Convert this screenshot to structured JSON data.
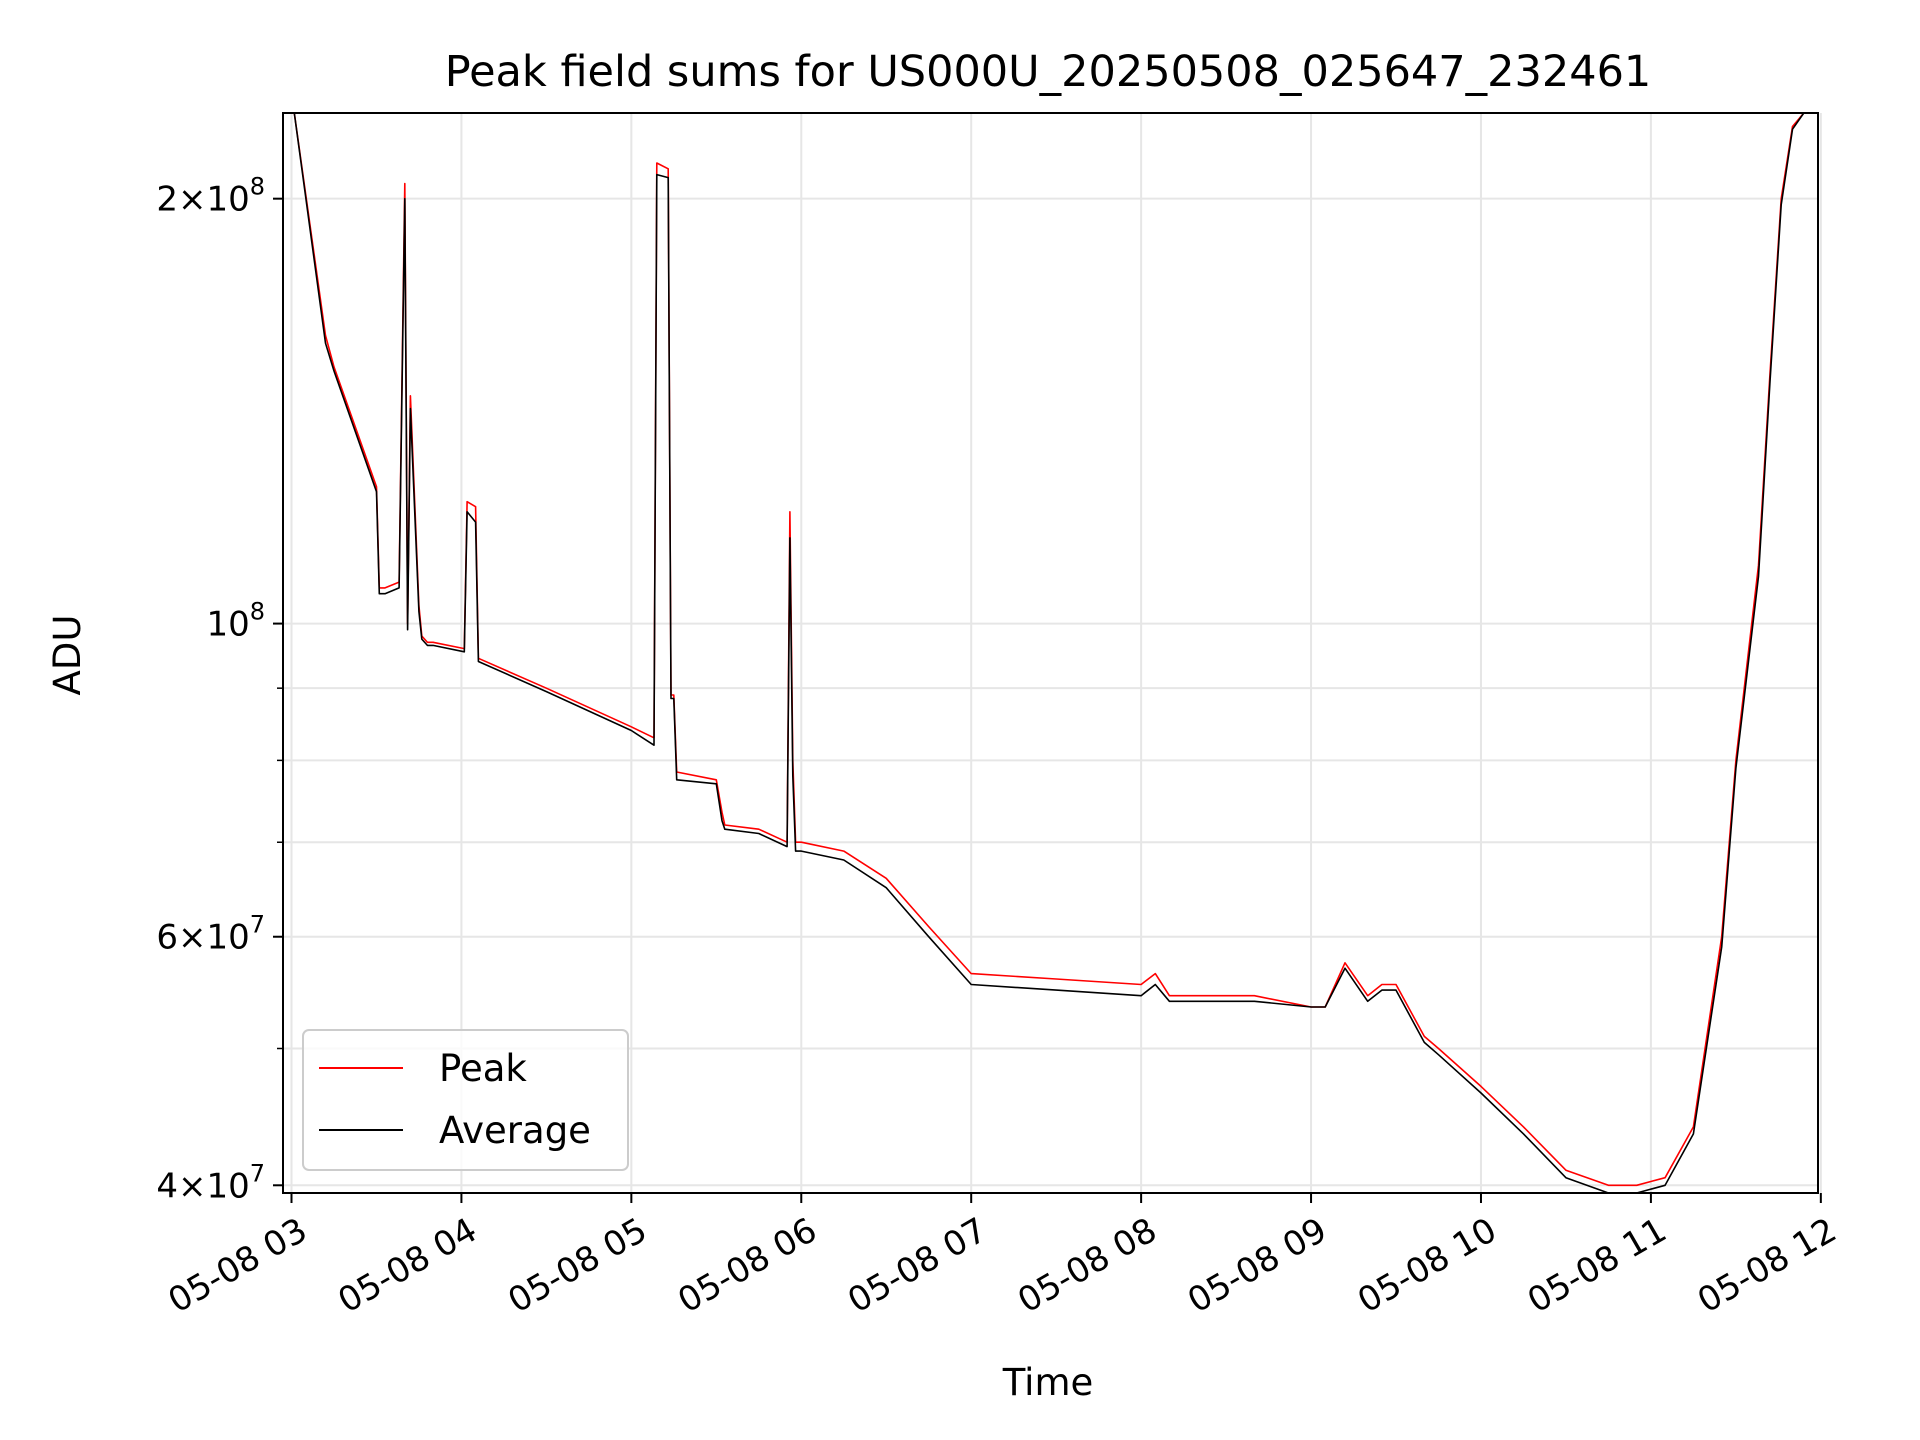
{
  "chart_data": {
    "type": "line",
    "title": "Peak field sums for US000U_20250508_025647_232461",
    "xlabel": "Time",
    "ylabel": "ADU",
    "y_scale": "log",
    "grid": true,
    "legend_position": "lower-left",
    "xlim": [
      "2025-05-08 02:57",
      "2025-05-08 11:59"
    ],
    "ylim": [
      39500000,
      230000000
    ],
    "x_ticks": [
      {
        "value": "2025-05-08 03:00",
        "label": "05-08 03"
      },
      {
        "value": "2025-05-08 04:00",
        "label": "05-08 04"
      },
      {
        "value": "2025-05-08 05:00",
        "label": "05-08 05"
      },
      {
        "value": "2025-05-08 06:00",
        "label": "05-08 06"
      },
      {
        "value": "2025-05-08 07:00",
        "label": "05-08 07"
      },
      {
        "value": "2025-05-08 08:00",
        "label": "05-08 08"
      },
      {
        "value": "2025-05-08 09:00",
        "label": "05-08 09"
      },
      {
        "value": "2025-05-08 10:00",
        "label": "05-08 10"
      },
      {
        "value": "2025-05-08 11:00",
        "label": "05-08 11"
      },
      {
        "value": "2025-05-08 12:00",
        "label": "05-08 12"
      }
    ],
    "y_major_ticks": [
      {
        "value": 40000000,
        "mantissa": "4",
        "exponent": "7"
      },
      {
        "value": 60000000,
        "mantissa": "6",
        "exponent": "7"
      },
      {
        "value": 100000000,
        "mantissa": "",
        "exponent": "8"
      },
      {
        "value": 200000000,
        "mantissa": "2",
        "exponent": "8"
      }
    ],
    "y_minor_ticks": [
      50000000,
      70000000,
      80000000,
      90000000
    ],
    "series": [
      {
        "name": "Peak",
        "color": "#ff0000",
        "x": [
          "2025-05-08 02:57",
          "2025-05-08 03:01",
          "2025-05-08 03:12",
          "2025-05-08 03:15",
          "2025-05-08 03:30",
          "2025-05-08 03:31",
          "2025-05-08 03:33",
          "2025-05-08 03:38",
          "2025-05-08 03:40",
          "2025-05-08 03:41",
          "2025-05-08 03:42",
          "2025-05-08 03:45",
          "2025-05-08 03:46",
          "2025-05-08 03:48",
          "2025-05-08 03:50",
          "2025-05-08 04:01",
          "2025-05-08 04:02",
          "2025-05-08 04:05",
          "2025-05-08 04:06",
          "2025-05-08 04:30",
          "2025-05-08 05:00",
          "2025-05-08 05:08",
          "2025-05-08 05:09",
          "2025-05-08 05:13",
          "2025-05-08 05:14",
          "2025-05-08 05:15",
          "2025-05-08 05:16",
          "2025-05-08 05:30",
          "2025-05-08 05:32",
          "2025-05-08 05:33",
          "2025-05-08 05:45",
          "2025-05-08 05:55",
          "2025-05-08 05:56",
          "2025-05-08 05:57",
          "2025-05-08 05:58",
          "2025-05-08 06:00",
          "2025-05-08 06:15",
          "2025-05-08 06:30",
          "2025-05-08 06:45",
          "2025-05-08 07:00",
          "2025-05-08 07:30",
          "2025-05-08 08:00",
          "2025-05-08 08:05",
          "2025-05-08 08:10",
          "2025-05-08 08:20",
          "2025-05-08 08:40",
          "2025-05-08 09:00",
          "2025-05-08 09:05",
          "2025-05-08 09:12",
          "2025-05-08 09:20",
          "2025-05-08 09:25",
          "2025-05-08 09:30",
          "2025-05-08 09:40",
          "2025-05-08 09:45",
          "2025-05-08 10:00",
          "2025-05-08 10:15",
          "2025-05-08 10:30",
          "2025-05-08 10:45",
          "2025-05-08 10:55",
          "2025-05-08 11:05",
          "2025-05-08 11:15",
          "2025-05-08 11:25",
          "2025-05-08 11:30",
          "2025-05-08 11:38",
          "2025-05-08 11:42",
          "2025-05-08 11:46",
          "2025-05-08 11:50",
          "2025-05-08 11:54",
          "2025-05-08 11:59"
        ],
        "y": [
          230000000,
          230000000,
          160000000,
          152000000,
          125000000,
          106000000,
          106000000,
          107000000,
          205000000,
          100000000,
          145000000,
          103000000,
          98000000,
          97000000,
          97000000,
          96000000,
          122000000,
          121000000,
          94500000,
          90000000,
          84500000,
          83000000,
          212000000,
          210000000,
          89000000,
          89000000,
          78500000,
          77500000,
          73500000,
          72000000,
          71500000,
          70000000,
          120000000,
          80000000,
          70000000,
          70000000,
          69000000,
          66000000,
          61000000,
          56500000,
          56000000,
          55500000,
          56500000,
          54500000,
          54500000,
          54500000,
          53500000,
          53500000,
          57500000,
          54500000,
          55500000,
          55500000,
          51000000,
          50000000,
          47000000,
          44000000,
          41000000,
          40000000,
          40000000,
          40500000,
          44000000,
          60000000,
          80000000,
          110000000,
          150000000,
          200000000,
          225000000,
          230000000,
          230000000
        ]
      },
      {
        "name": "Average",
        "color": "#000000",
        "x": [
          "2025-05-08 02:57",
          "2025-05-08 03:01",
          "2025-05-08 03:12",
          "2025-05-08 03:15",
          "2025-05-08 03:30",
          "2025-05-08 03:31",
          "2025-05-08 03:33",
          "2025-05-08 03:38",
          "2025-05-08 03:40",
          "2025-05-08 03:41",
          "2025-05-08 03:42",
          "2025-05-08 03:45",
          "2025-05-08 03:46",
          "2025-05-08 03:48",
          "2025-05-08 03:50",
          "2025-05-08 04:01",
          "2025-05-08 04:02",
          "2025-05-08 04:05",
          "2025-05-08 04:06",
          "2025-05-08 04:30",
          "2025-05-08 05:00",
          "2025-05-08 05:08",
          "2025-05-08 05:09",
          "2025-05-08 05:13",
          "2025-05-08 05:14",
          "2025-05-08 05:15",
          "2025-05-08 05:16",
          "2025-05-08 05:30",
          "2025-05-08 05:32",
          "2025-05-08 05:33",
          "2025-05-08 05:45",
          "2025-05-08 05:55",
          "2025-05-08 05:56",
          "2025-05-08 05:57",
          "2025-05-08 05:58",
          "2025-05-08 06:00",
          "2025-05-08 06:15",
          "2025-05-08 06:30",
          "2025-05-08 06:45",
          "2025-05-08 07:00",
          "2025-05-08 07:30",
          "2025-05-08 08:00",
          "2025-05-08 08:05",
          "2025-05-08 08:10",
          "2025-05-08 08:20",
          "2025-05-08 08:40",
          "2025-05-08 09:00",
          "2025-05-08 09:05",
          "2025-05-08 09:12",
          "2025-05-08 09:20",
          "2025-05-08 09:25",
          "2025-05-08 09:30",
          "2025-05-08 09:40",
          "2025-05-08 09:45",
          "2025-05-08 10:00",
          "2025-05-08 10:15",
          "2025-05-08 10:30",
          "2025-05-08 10:45",
          "2025-05-08 10:55",
          "2025-05-08 11:05",
          "2025-05-08 11:15",
          "2025-05-08 11:25",
          "2025-05-08 11:30",
          "2025-05-08 11:38",
          "2025-05-08 11:42",
          "2025-05-08 11:46",
          "2025-05-08 11:50",
          "2025-05-08 11:54",
          "2025-05-08 11:59"
        ],
        "y": [
          230000000,
          230000000,
          158000000,
          151000000,
          124000000,
          105000000,
          105000000,
          106000000,
          200000000,
          99000000,
          142000000,
          102000000,
          97500000,
          96500000,
          96500000,
          95500000,
          120000000,
          118000000,
          94000000,
          89500000,
          84000000,
          82000000,
          208000000,
          207000000,
          88500000,
          88500000,
          77500000,
          77000000,
          72500000,
          71500000,
          71000000,
          69500000,
          115000000,
          78000000,
          69000000,
          69000000,
          68000000,
          65000000,
          60000000,
          55500000,
          55000000,
          54500000,
          55500000,
          54000000,
          54000000,
          54000000,
          53500000,
          53500000,
          57000000,
          54000000,
          55000000,
          55000000,
          50500000,
          49500000,
          46500000,
          43500000,
          40500000,
          39500000,
          39500000,
          40000000,
          43500000,
          59000000,
          79000000,
          108000000,
          148000000,
          198000000,
          224000000,
          230000000,
          230000000
        ]
      }
    ]
  }
}
